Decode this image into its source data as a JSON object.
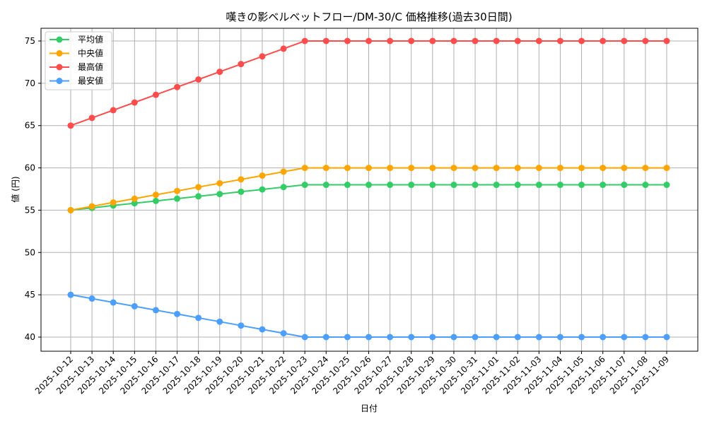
{
  "chart_data": {
    "type": "line",
    "title": "嘆きの影ベルベットフロー/DM-30/C 価格推移(過去30日間)",
    "xlabel": "日付",
    "ylabel": "値 (円)",
    "ylim": [
      38.3,
      76.7
    ],
    "yticks": [
      40,
      45,
      50,
      55,
      60,
      65,
      70,
      75
    ],
    "grid": true,
    "legend_position": "upper left",
    "categories": [
      "2025-10-12",
      "2025-10-13",
      "2025-10-14",
      "2025-10-15",
      "2025-10-16",
      "2025-10-17",
      "2025-10-18",
      "2025-10-19",
      "2025-10-20",
      "2025-10-21",
      "2025-10-22",
      "2025-10-23",
      "2025-10-24",
      "2025-10-25",
      "2025-10-26",
      "2025-10-27",
      "2025-10-28",
      "2025-10-29",
      "2025-10-30",
      "2025-10-31",
      "2025-11-01",
      "2025-11-02",
      "2025-11-03",
      "2025-11-04",
      "2025-11-05",
      "2025-11-06",
      "2025-11-07",
      "2025-11-08",
      "2025-11-09"
    ],
    "series": [
      {
        "name": "平均値",
        "color": "#33cc66",
        "values": [
          55.0,
          55.27,
          55.55,
          55.82,
          56.09,
          56.36,
          56.64,
          56.91,
          57.18,
          57.45,
          57.73,
          58,
          58,
          58,
          58,
          58,
          58,
          58,
          58,
          58,
          58,
          58,
          58,
          58,
          58,
          58,
          58,
          58,
          58
        ]
      },
      {
        "name": "中央値",
        "color": "#ffa500",
        "values": [
          55.0,
          55.45,
          55.91,
          56.36,
          56.82,
          57.27,
          57.73,
          58.18,
          58.64,
          59.09,
          59.55,
          60,
          60,
          60,
          60,
          60,
          60,
          60,
          60,
          60,
          60,
          60,
          60,
          60,
          60,
          60,
          60,
          60,
          60
        ]
      },
      {
        "name": "最高値",
        "color": "#ff4d4d",
        "values": [
          65.0,
          65.91,
          66.82,
          67.73,
          68.64,
          69.55,
          70.45,
          71.36,
          72.27,
          73.18,
          74.09,
          75,
          75,
          75,
          75,
          75,
          75,
          75,
          75,
          75,
          75,
          75,
          75,
          75,
          75,
          75,
          75,
          75,
          75
        ]
      },
      {
        "name": "最安値",
        "color": "#4d9fff",
        "values": [
          45.0,
          44.55,
          44.09,
          43.64,
          43.18,
          42.73,
          42.27,
          41.82,
          41.36,
          40.91,
          40.45,
          40,
          40,
          40,
          40,
          40,
          40,
          40,
          40,
          40,
          40,
          40,
          40,
          40,
          40,
          40,
          40,
          40,
          40
        ]
      }
    ]
  }
}
